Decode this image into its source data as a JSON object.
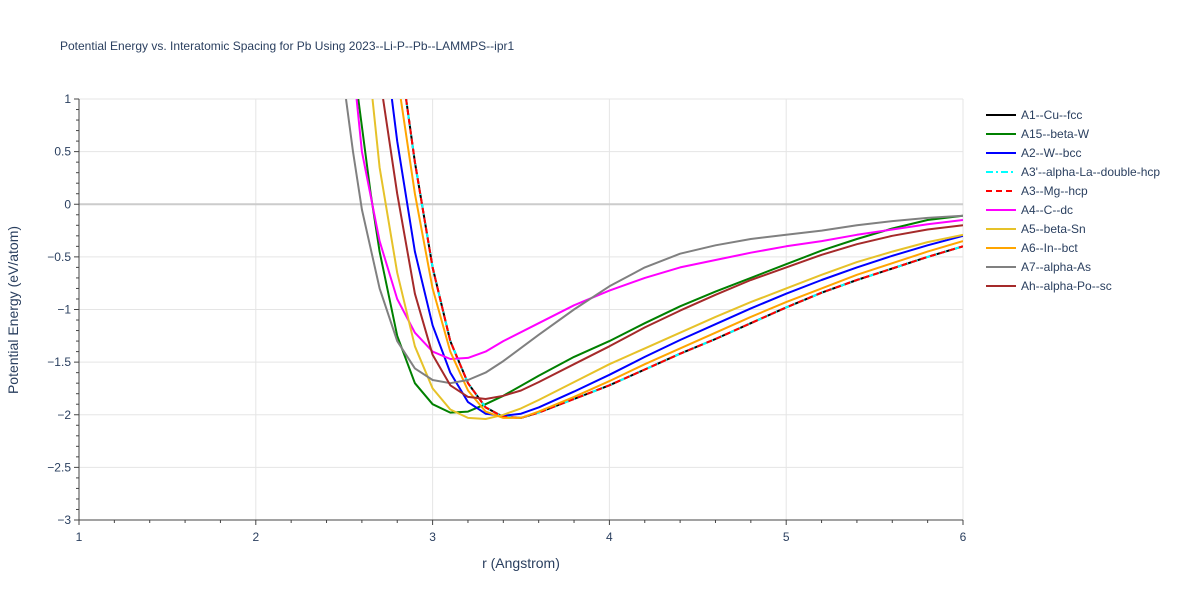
{
  "chart_data": {
    "type": "line",
    "title": "Potential Energy vs. Interatomic Spacing for Pb Using 2023--Li-P--Pb--LAMMPS--ipr1",
    "xlabel": "r (Angstrom)",
    "ylabel": "Potential Energy (eV/atom)",
    "xlim": [
      1,
      6
    ],
    "ylim": [
      -3,
      1
    ],
    "xticks": [
      1,
      2,
      3,
      4,
      5,
      6
    ],
    "yticks": [
      -3,
      -2.5,
      -2,
      -1.5,
      -1,
      -0.5,
      0,
      0.5,
      1
    ],
    "ytick_labels": [
      "−3",
      "−2.5",
      "−2",
      "−1.5",
      "−1",
      "−0.5",
      "0",
      "0.5",
      "1"
    ],
    "grid": true,
    "legend_position": "right",
    "series": [
      {
        "name": "A1--Cu--fcc",
        "color": "#000000",
        "dash": "solid",
        "x": [
          2.85,
          2.9,
          3.0,
          3.1,
          3.2,
          3.3,
          3.4,
          3.5,
          3.6,
          3.8,
          4.0,
          4.2,
          4.4,
          4.6,
          4.8,
          5.0,
          5.2,
          5.4,
          5.6,
          5.8,
          6.0
        ],
        "y": [
          1.0,
          0.4,
          -0.6,
          -1.3,
          -1.7,
          -1.93,
          -2.02,
          -2.03,
          -1.98,
          -1.85,
          -1.72,
          -1.57,
          -1.42,
          -1.28,
          -1.13,
          -0.98,
          -0.84,
          -0.72,
          -0.61,
          -0.5,
          -0.4
        ]
      },
      {
        "name": "A15--beta-W",
        "color": "#008000",
        "dash": "solid",
        "x": [
          2.58,
          2.65,
          2.7,
          2.8,
          2.9,
          3.0,
          3.1,
          3.2,
          3.3,
          3.4,
          3.6,
          3.8,
          4.0,
          4.2,
          4.4,
          4.6,
          4.8,
          5.0,
          5.2,
          5.4,
          5.6,
          5.8,
          6.0
        ],
        "y": [
          1.0,
          0.1,
          -0.45,
          -1.25,
          -1.7,
          -1.9,
          -1.98,
          -1.97,
          -1.9,
          -1.82,
          -1.63,
          -1.45,
          -1.3,
          -1.13,
          -0.97,
          -0.83,
          -0.7,
          -0.57,
          -0.44,
          -0.33,
          -0.23,
          -0.15,
          -0.11
        ]
      },
      {
        "name": "A2--W--bcc",
        "color": "#0000ff",
        "dash": "solid",
        "x": [
          2.77,
          2.8,
          2.9,
          3.0,
          3.1,
          3.2,
          3.3,
          3.4,
          3.5,
          3.6,
          3.8,
          4.0,
          4.2,
          4.4,
          4.6,
          4.8,
          5.0,
          5.2,
          5.4,
          5.6,
          5.8,
          6.0
        ],
        "y": [
          1.0,
          0.6,
          -0.45,
          -1.15,
          -1.6,
          -1.88,
          -1.99,
          -2.01,
          -1.99,
          -1.93,
          -1.78,
          -1.62,
          -1.45,
          -1.29,
          -1.14,
          -0.99,
          -0.85,
          -0.72,
          -0.6,
          -0.49,
          -0.39,
          -0.3
        ]
      },
      {
        "name": "A3'--alpha-La--double-hcp",
        "color": "#00ffff",
        "dash": "dashdot",
        "x": [
          2.85,
          2.9,
          3.0,
          3.1,
          3.2,
          3.3,
          3.4,
          3.5,
          3.6,
          3.8,
          4.0,
          4.2,
          4.4,
          4.6,
          4.8,
          5.0,
          5.2,
          5.4,
          5.6,
          5.8,
          6.0
        ],
        "y": [
          1.0,
          0.4,
          -0.6,
          -1.3,
          -1.7,
          -1.93,
          -2.02,
          -2.03,
          -1.98,
          -1.85,
          -1.72,
          -1.57,
          -1.42,
          -1.28,
          -1.13,
          -0.98,
          -0.84,
          -0.72,
          -0.61,
          -0.5,
          -0.4
        ]
      },
      {
        "name": "A3--Mg--hcp",
        "color": "#ff0000",
        "dash": "dash",
        "x": [
          2.85,
          2.9,
          3.0,
          3.1,
          3.2,
          3.3,
          3.4,
          3.5,
          3.6,
          3.8,
          4.0,
          4.2,
          4.4,
          4.6,
          4.8,
          5.0,
          5.2,
          5.4,
          5.6,
          5.8,
          6.0
        ],
        "y": [
          1.0,
          0.4,
          -0.6,
          -1.3,
          -1.7,
          -1.93,
          -2.02,
          -2.03,
          -1.98,
          -1.85,
          -1.72,
          -1.57,
          -1.42,
          -1.28,
          -1.13,
          -0.98,
          -0.84,
          -0.72,
          -0.61,
          -0.5,
          -0.4
        ]
      },
      {
        "name": "A4--C--dc",
        "color": "#ff00ff",
        "dash": "solid",
        "x": [
          2.57,
          2.6,
          2.7,
          2.8,
          2.9,
          3.0,
          3.1,
          3.2,
          3.3,
          3.4,
          3.6,
          3.8,
          4.0,
          4.2,
          4.4,
          4.6,
          4.8,
          5.0,
          5.2,
          5.4,
          5.6,
          5.8,
          6.0
        ],
        "y": [
          1.0,
          0.5,
          -0.35,
          -0.9,
          -1.22,
          -1.4,
          -1.47,
          -1.46,
          -1.4,
          -1.3,
          -1.13,
          -0.96,
          -0.82,
          -0.7,
          -0.6,
          -0.53,
          -0.46,
          -0.4,
          -0.35,
          -0.29,
          -0.24,
          -0.19,
          -0.15
        ]
      },
      {
        "name": "A5--beta-Sn",
        "color": "#e6c229",
        "dash": "solid",
        "x": [
          2.66,
          2.7,
          2.8,
          2.9,
          3.0,
          3.1,
          3.2,
          3.3,
          3.4,
          3.5,
          3.6,
          3.8,
          4.0,
          4.2,
          4.4,
          4.6,
          4.8,
          5.0,
          5.2,
          5.4,
          5.6,
          5.8,
          6.0
        ],
        "y": [
          1.0,
          0.35,
          -0.65,
          -1.35,
          -1.75,
          -1.95,
          -2.03,
          -2.04,
          -2.0,
          -1.94,
          -1.86,
          -1.69,
          -1.52,
          -1.37,
          -1.22,
          -1.07,
          -0.93,
          -0.8,
          -0.67,
          -0.55,
          -0.45,
          -0.36,
          -0.29
        ]
      },
      {
        "name": "A6--In--bct",
        "color": "#ffa500",
        "dash": "solid",
        "x": [
          2.82,
          2.9,
          3.0,
          3.1,
          3.2,
          3.3,
          3.4,
          3.5,
          3.6,
          3.8,
          4.0,
          4.2,
          4.4,
          4.6,
          4.8,
          5.0,
          5.2,
          5.4,
          5.6,
          5.8,
          6.0
        ],
        "y": [
          1.0,
          0.1,
          -0.8,
          -1.4,
          -1.77,
          -1.97,
          -2.03,
          -2.03,
          -1.97,
          -1.83,
          -1.68,
          -1.52,
          -1.37,
          -1.22,
          -1.07,
          -0.93,
          -0.8,
          -0.67,
          -0.56,
          -0.45,
          -0.35
        ]
      },
      {
        "name": "A7--alpha-As",
        "color": "#808080",
        "dash": "solid",
        "x": [
          2.51,
          2.55,
          2.6,
          2.7,
          2.8,
          2.9,
          3.0,
          3.1,
          3.2,
          3.3,
          3.4,
          3.6,
          3.8,
          4.0,
          4.2,
          4.4,
          4.6,
          4.8,
          5.0,
          5.2,
          5.4,
          5.6,
          5.8,
          6.0
        ],
        "y": [
          1.0,
          0.5,
          -0.05,
          -0.8,
          -1.3,
          -1.56,
          -1.67,
          -1.7,
          -1.67,
          -1.6,
          -1.49,
          -1.24,
          -1.0,
          -0.78,
          -0.6,
          -0.47,
          -0.39,
          -0.33,
          -0.29,
          -0.25,
          -0.2,
          -0.16,
          -0.13,
          -0.11
        ]
      },
      {
        "name": "Ah--alpha-Po--sc",
        "color": "#a52a2a",
        "dash": "solid",
        "x": [
          2.72,
          2.8,
          2.9,
          3.0,
          3.1,
          3.2,
          3.3,
          3.4,
          3.5,
          3.6,
          3.8,
          4.0,
          4.2,
          4.4,
          4.6,
          4.8,
          5.0,
          5.2,
          5.4,
          5.6,
          5.8,
          6.0
        ],
        "y": [
          1.0,
          0.1,
          -0.85,
          -1.43,
          -1.72,
          -1.83,
          -1.85,
          -1.82,
          -1.77,
          -1.69,
          -1.52,
          -1.35,
          -1.17,
          -1.01,
          -0.86,
          -0.72,
          -0.6,
          -0.48,
          -0.38,
          -0.3,
          -0.24,
          -0.2
        ]
      }
    ]
  }
}
